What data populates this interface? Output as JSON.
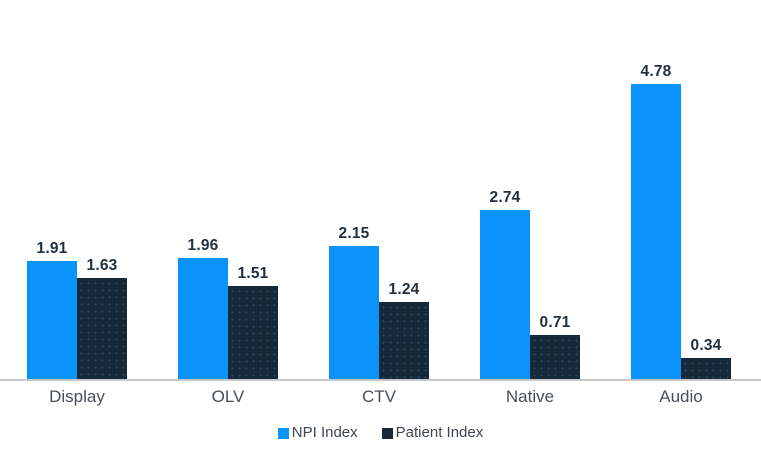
{
  "chart_data": {
    "type": "bar",
    "title": "",
    "xlabel": "",
    "ylabel": "",
    "categories": [
      "Display",
      "OLV",
      "CTV",
      "Native",
      "Audio"
    ],
    "series": [
      {
        "name": "NPI Index",
        "color": "#0A93FB",
        "values": [
          1.91,
          1.96,
          2.15,
          2.74,
          4.78
        ]
      },
      {
        "name": "Patient Index",
        "color": "#16293B",
        "values": [
          1.63,
          1.51,
          1.24,
          0.71,
          0.34
        ]
      }
    ],
    "value_labels_shown": true,
    "value_label_decimals": 2,
    "ylim": [
      0,
      5.2
    ],
    "grid": false,
    "y_axis_shown": false,
    "legend_position": "bottom",
    "colors": {
      "value_label": "#22303F",
      "category_label": "#474F57",
      "legend_text": "#3F464D",
      "axis_line": "#C4C8CC",
      "background": "#FFFFFF"
    }
  }
}
